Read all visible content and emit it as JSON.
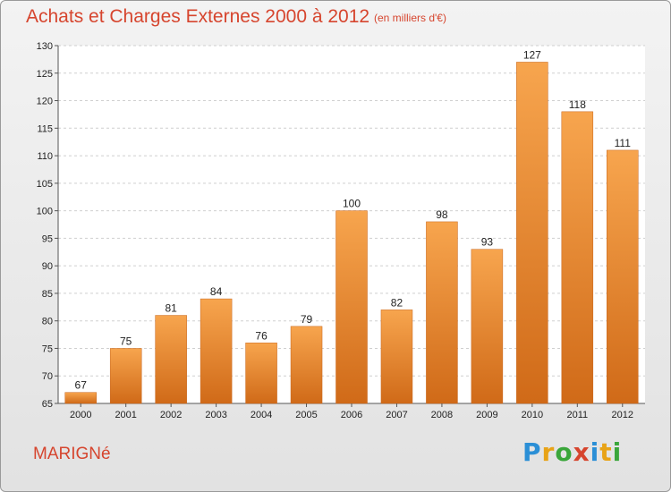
{
  "title": "Achats et Charges Externes 2000 à 2012",
  "subtitle": "(en milliers d'€)",
  "commune": "MARIGNé",
  "logo": {
    "letters": [
      "P",
      "r",
      "o",
      "x",
      "i",
      "t",
      "i"
    ],
    "colors": [
      "#2b8fd6",
      "#e8a317",
      "#3aa63a",
      "#d6452e",
      "#2b8fd6",
      "#e8a317",
      "#3aa63a"
    ]
  },
  "colors": {
    "title": "#d6452e",
    "bar_light": "#f7a54e",
    "bar_dark": "#d06a18"
  },
  "chart_data": {
    "type": "bar",
    "categories": [
      "2000",
      "2001",
      "2002",
      "2003",
      "2004",
      "2005",
      "2006",
      "2007",
      "2008",
      "2009",
      "2010",
      "2011",
      "2012"
    ],
    "values": [
      67,
      75,
      81,
      84,
      76,
      79,
      100,
      82,
      98,
      93,
      127,
      118,
      111
    ],
    "ylim": [
      65,
      130
    ],
    "yticks": [
      65,
      70,
      75,
      80,
      85,
      90,
      95,
      100,
      105,
      110,
      115,
      120,
      125,
      130
    ],
    "grid": true
  }
}
